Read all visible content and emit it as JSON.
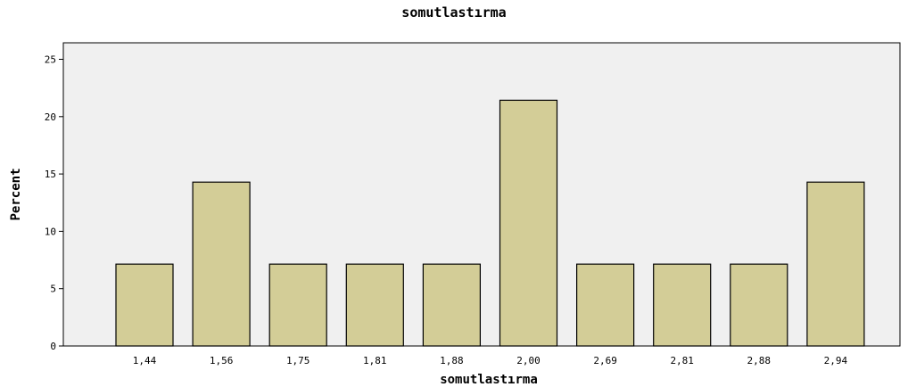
{
  "chart_data": {
    "type": "bar",
    "title": "somutlastırma",
    "xlabel": "somutlastırma",
    "ylabel": "Percent",
    "categories": [
      "1,44",
      "1,56",
      "1,75",
      "1,81",
      "1,88",
      "2,00",
      "2,69",
      "2,81",
      "2,88",
      "2,94"
    ],
    "values": [
      7.14,
      14.29,
      7.14,
      7.14,
      7.14,
      21.43,
      7.14,
      7.14,
      7.14,
      14.29
    ],
    "ylim": [
      0,
      25
    ],
    "yticks": [
      0,
      5,
      10,
      15,
      20,
      25
    ],
    "grid": false,
    "legend": "none",
    "colors": {
      "bar_fill": "#d3cd97",
      "bar_stroke": "#000000",
      "plot_bg": "#f0f0f0"
    }
  }
}
